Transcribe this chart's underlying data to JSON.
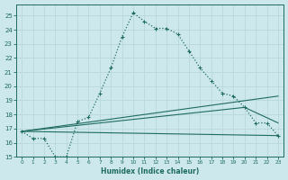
{
  "xlabel": "Humidex (Indice chaleur)",
  "xlim": [
    -0.5,
    23.5
  ],
  "ylim": [
    15,
    25.8
  ],
  "yticks": [
    15,
    16,
    17,
    18,
    19,
    20,
    21,
    22,
    23,
    24,
    25
  ],
  "xticks": [
    0,
    1,
    2,
    3,
    4,
    5,
    6,
    7,
    8,
    9,
    10,
    11,
    12,
    13,
    14,
    15,
    16,
    17,
    18,
    19,
    20,
    21,
    22,
    23
  ],
  "bg_color": "#cde8ec",
  "grid_color": "#b8d8dc",
  "line_color": "#1e6b60",
  "line1_x": [
    0,
    1,
    2,
    3,
    4,
    5,
    6,
    7,
    8,
    9,
    10,
    11,
    12,
    13,
    14,
    15,
    16,
    17,
    18,
    19,
    20,
    21,
    22,
    23
  ],
  "line1_y": [
    16.8,
    16.3,
    16.3,
    15.0,
    15.0,
    17.5,
    17.8,
    19.5,
    21.3,
    23.5,
    25.2,
    24.6,
    24.1,
    24.1,
    23.7,
    22.5,
    21.3,
    20.4,
    19.5,
    19.3,
    18.5,
    17.4,
    17.4,
    16.5
  ],
  "line2_x": [
    0,
    23
  ],
  "line2_y": [
    16.8,
    19.3
  ],
  "line3_x": [
    0,
    20,
    23
  ],
  "line3_y": [
    16.8,
    18.5,
    17.4
  ],
  "line4_x": [
    0,
    23
  ],
  "line4_y": [
    16.8,
    16.5
  ]
}
